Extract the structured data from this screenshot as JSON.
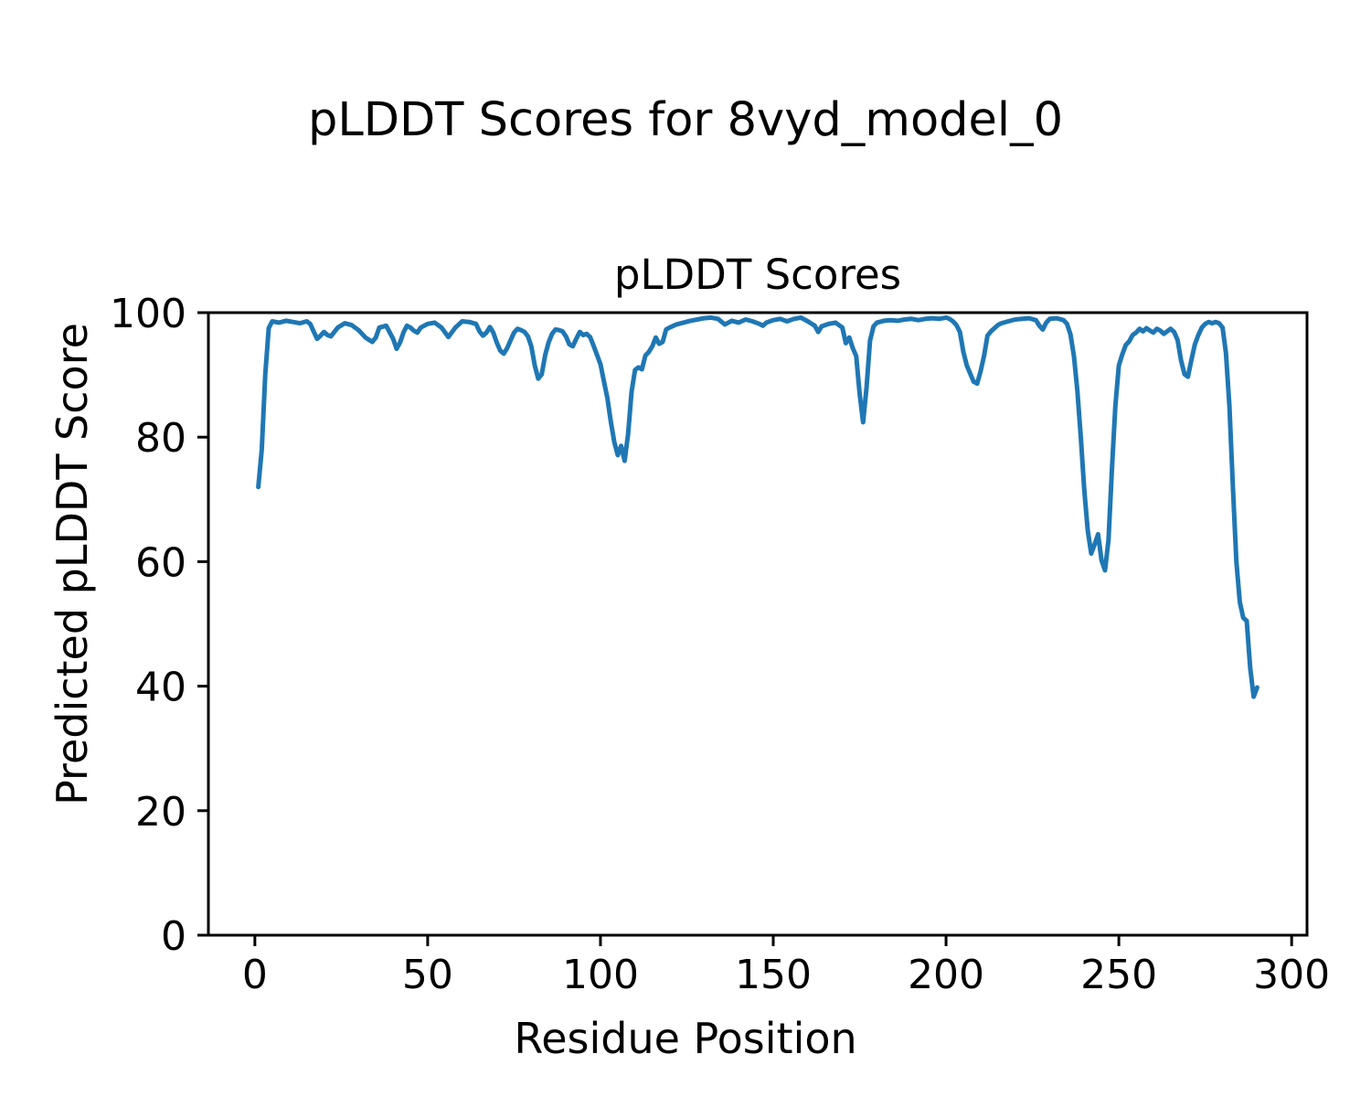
{
  "chart_data": {
    "type": "line",
    "title": "pLDDT Scores for 8vyd_model_0",
    "axes_title": "pLDDT Scores",
    "xlabel": "Residue Position",
    "ylabel": "Predicted pLDDT Score",
    "xticks": [
      0,
      50,
      100,
      150,
      200,
      250,
      300
    ],
    "yticks": [
      0,
      20,
      40,
      60,
      80,
      100
    ],
    "xlim": [
      -13.45,
      304.45
    ],
    "ylim": [
      0,
      100
    ],
    "grid": false,
    "legend_position": "none",
    "line_color": "#1f77b4",
    "axis_color": "#000000",
    "series": [
      {
        "name": "pLDDT",
        "x": [
          1,
          2,
          3,
          4,
          5,
          7,
          9,
          11,
          13,
          15,
          16,
          17,
          18,
          19,
          20,
          21,
          22,
          24,
          26,
          28,
          30,
          32,
          34,
          35,
          36,
          38,
          40,
          41,
          42,
          43,
          44,
          45,
          46,
          47,
          48,
          50,
          52,
          54,
          56,
          58,
          60,
          62,
          64,
          65,
          66,
          67,
          68,
          69,
          70,
          71,
          72,
          73,
          74,
          75,
          76,
          77,
          78,
          79,
          80,
          81,
          82,
          83,
          84,
          85,
          86,
          87,
          88,
          89,
          90,
          91,
          92,
          93,
          94,
          95,
          96,
          97,
          98,
          99,
          100,
          101,
          102,
          103,
          104,
          105,
          106,
          107,
          108,
          109,
          110,
          111,
          112,
          113,
          114,
          115,
          116,
          117,
          118,
          119,
          120,
          122,
          124,
          126,
          128,
          130,
          132,
          134,
          136,
          138,
          140,
          142,
          144,
          146,
          147,
          148,
          150,
          152,
          154,
          156,
          158,
          160,
          162,
          163,
          164,
          166,
          168,
          170,
          171,
          172,
          173,
          174,
          175,
          176,
          177,
          178,
          179,
          180,
          182,
          184,
          186,
          188,
          190,
          192,
          194,
          196,
          198,
          200,
          201,
          202,
          203,
          204,
          205,
          206,
          207,
          208,
          209,
          210,
          211,
          212,
          213,
          214,
          215,
          216,
          218,
          220,
          222,
          224,
          226,
          227,
          228,
          229,
          230,
          232,
          234,
          235,
          236,
          237,
          238,
          239,
          240,
          241,
          242,
          243,
          244,
          245,
          246,
          247,
          248,
          249,
          250,
          251,
          252,
          253,
          254,
          255,
          256,
          257,
          258,
          259,
          260,
          261,
          262,
          263,
          264,
          265,
          266,
          267,
          268,
          269,
          270,
          271,
          272,
          273,
          274,
          275,
          276,
          277,
          278,
          279,
          280,
          281,
          282,
          283,
          284,
          285,
          286,
          287,
          288,
          289,
          290
        ],
        "values": [
          72,
          78,
          90,
          97.5,
          98.6,
          98.4,
          98.7,
          98.5,
          98.3,
          98.6,
          98.2,
          97,
          95.8,
          96.3,
          96.9,
          96.4,
          96.2,
          97.6,
          98.3,
          98,
          97.2,
          96,
          95.3,
          96,
          97.6,
          97.9,
          95.8,
          94.2,
          95.2,
          96.8,
          97.9,
          97.6,
          97.1,
          96.8,
          97.6,
          98.2,
          98.4,
          97.6,
          96.1,
          97.6,
          98.6,
          98.5,
          98.2,
          97,
          96.3,
          96.8,
          97.7,
          96.8,
          95.2,
          93.9,
          93.4,
          94.3,
          95.6,
          96.8,
          97.4,
          97.2,
          96.9,
          96.2,
          94.6,
          91.5,
          89.4,
          90.1,
          93.2,
          95.2,
          96.6,
          97.3,
          97.2,
          97,
          96.2,
          94.9,
          94.6,
          95.8,
          96.9,
          96.4,
          96.6,
          96.1,
          94.7,
          93.2,
          91.7,
          89,
          86.3,
          82.5,
          79.2,
          77.1,
          78.6,
          76.2,
          80.5,
          87.3,
          90.8,
          91.2,
          90.9,
          93.1,
          93.7,
          94.6,
          96,
          95,
          95.3,
          97.3,
          97.6,
          98.1,
          98.4,
          98.7,
          98.9,
          99.1,
          99.2,
          99,
          98.1,
          98.7,
          98.4,
          98.9,
          98.6,
          98.2,
          97.9,
          98.4,
          98.8,
          99,
          98.6,
          99,
          99.2,
          98.6,
          97.9,
          96.9,
          97.8,
          98.2,
          98.4,
          97.6,
          95.1,
          96,
          94.3,
          93,
          87,
          82.4,
          88,
          95.5,
          97.8,
          98.4,
          98.7,
          98.8,
          98.7,
          98.9,
          99,
          98.8,
          99,
          99.1,
          99,
          99.2,
          99,
          98.6,
          98,
          96.9,
          93.7,
          91.5,
          90.2,
          88.9,
          88.6,
          90.6,
          93.1,
          96.3,
          97,
          97.5,
          98,
          98.3,
          98.6,
          98.9,
          99,
          99.1,
          98.8,
          97.9,
          97.3,
          98.4,
          99,
          99.1,
          98.8,
          98.2,
          96.5,
          93,
          87.5,
          80,
          71.5,
          65,
          61.3,
          62.8,
          64.4,
          60.2,
          58.6,
          63.5,
          75,
          85,
          91.5,
          93.3,
          94.8,
          95.4,
          96.4,
          96.8,
          97.4,
          97,
          97.5,
          97.1,
          96.8,
          97.4,
          97.1,
          96.6,
          97,
          97.4,
          96.9,
          95.6,
          92.3,
          90.1,
          89.7,
          92.4,
          94.9,
          96.4,
          97.6,
          98.2,
          98.5,
          98.3,
          98.5,
          98.3,
          97.6,
          93.5,
          85,
          72,
          60,
          53.5,
          51,
          50.5,
          43,
          38.3,
          39.8
        ]
      }
    ]
  }
}
